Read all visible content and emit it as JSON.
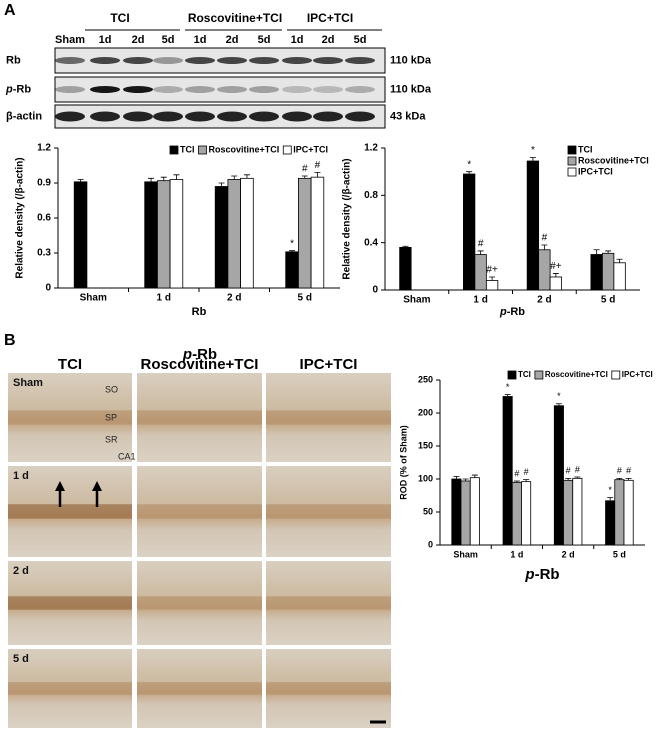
{
  "panel_a": {
    "label": "A",
    "groups": [
      "TCI",
      "Roscovitine+TCI",
      "IPC+TCI"
    ],
    "lanes": [
      "Sham",
      "1d",
      "2d",
      "5d",
      "1d",
      "2d",
      "5d",
      "1d",
      "2d",
      "5d"
    ],
    "rows": [
      {
        "name": "Rb",
        "size": "110 kDa"
      },
      {
        "name": "p-Rb",
        "size": "110 kDa"
      },
      {
        "name": "β-actin",
        "size": "43 kDa"
      }
    ]
  },
  "panel_b": {
    "label": "B",
    "title": "p-Rb",
    "columns": [
      "TCI",
      "Roscovitine+TCI",
      "IPC+TCI"
    ],
    "rows": [
      "Sham",
      "1 d",
      "2 d",
      "5 d"
    ],
    "regions": [
      "SO",
      "SP",
      "SR",
      "CA1"
    ]
  },
  "chart_data": [
    {
      "type": "bar",
      "xlabel": "Rb",
      "ylabel": "Relative density (/β-actin)",
      "categories": [
        "Sham",
        "1 d",
        "2 d",
        "5 d"
      ],
      "ylim": [
        0,
        1.2
      ],
      "yticks": [
        0,
        0.3,
        0.6,
        0.9,
        1.2
      ],
      "legend": "upper right",
      "series": [
        {
          "name": "TCI",
          "color": "#000000",
          "values": [
            0.91,
            0.91,
            0.87,
            0.31
          ],
          "errors": [
            0.02,
            0.03,
            0.03,
            0.01
          ],
          "markers": [
            null,
            null,
            null,
            "*"
          ]
        },
        {
          "name": "Roscovitine+TCI",
          "color": "#a6a6a6",
          "values": [
            null,
            0.92,
            0.93,
            0.94
          ],
          "errors": [
            null,
            0.03,
            0.03,
            0.02
          ],
          "markers": [
            null,
            null,
            null,
            "#"
          ]
        },
        {
          "name": "IPC+TCI",
          "color": "#ffffff",
          "values": [
            null,
            0.93,
            0.94,
            0.95
          ],
          "errors": [
            null,
            0.04,
            0.03,
            0.04
          ],
          "markers": [
            null,
            null,
            null,
            "#"
          ]
        }
      ]
    },
    {
      "type": "bar",
      "xlabel": "p-Rb",
      "ylabel": "Relative density (/β-actin)",
      "categories": [
        "Sham",
        "1 d",
        "2 d",
        "5 d"
      ],
      "ylim": [
        0,
        1.2
      ],
      "yticks": [
        0,
        0.4,
        0.8,
        1.2
      ],
      "legend": "upper right",
      "series": [
        {
          "name": "TCI",
          "color": "#000000",
          "values": [
            0.36,
            0.98,
            1.09,
            0.3
          ],
          "errors": [
            0.01,
            0.02,
            0.03,
            0.04
          ],
          "markers": [
            null,
            "*",
            "*",
            null
          ]
        },
        {
          "name": "Roscovitine+TCI",
          "color": "#a6a6a6",
          "values": [
            null,
            0.3,
            0.34,
            0.31
          ],
          "errors": [
            null,
            0.03,
            0.04,
            0.02
          ],
          "markers": [
            null,
            "#",
            "#",
            null
          ]
        },
        {
          "name": "IPC+TCI",
          "color": "#ffffff",
          "values": [
            null,
            0.08,
            0.11,
            0.23
          ],
          "errors": [
            null,
            0.03,
            0.03,
            0.03
          ],
          "markers": [
            null,
            "#+",
            "#+",
            null
          ]
        }
      ]
    },
    {
      "type": "bar",
      "xlabel": "p-Rb",
      "ylabel": "ROD (% of Sham)",
      "categories": [
        "Sham",
        "1 d",
        "2 d",
        "5 d"
      ],
      "ylim": [
        0,
        250
      ],
      "yticks": [
        0,
        50,
        100,
        150,
        200,
        250
      ],
      "legend": "upper right",
      "series": [
        {
          "name": "TCI",
          "color": "#000000",
          "values": [
            100,
            225,
            211,
            67
          ],
          "errors": [
            4,
            3,
            3,
            5
          ],
          "markers": [
            null,
            "*",
            "*",
            "*"
          ]
        },
        {
          "name": "Roscovitine+TCI",
          "color": "#a6a6a6",
          "values": [
            97,
            95,
            98,
            99
          ],
          "errors": [
            3,
            2,
            3,
            2
          ],
          "markers": [
            null,
            "#",
            "#",
            "#"
          ]
        },
        {
          "name": "IPC+TCI",
          "color": "#ffffff",
          "values": [
            102,
            96,
            101,
            98
          ],
          "errors": [
            4,
            3,
            2,
            3
          ],
          "markers": [
            null,
            "#",
            "#",
            "#"
          ]
        }
      ]
    }
  ]
}
